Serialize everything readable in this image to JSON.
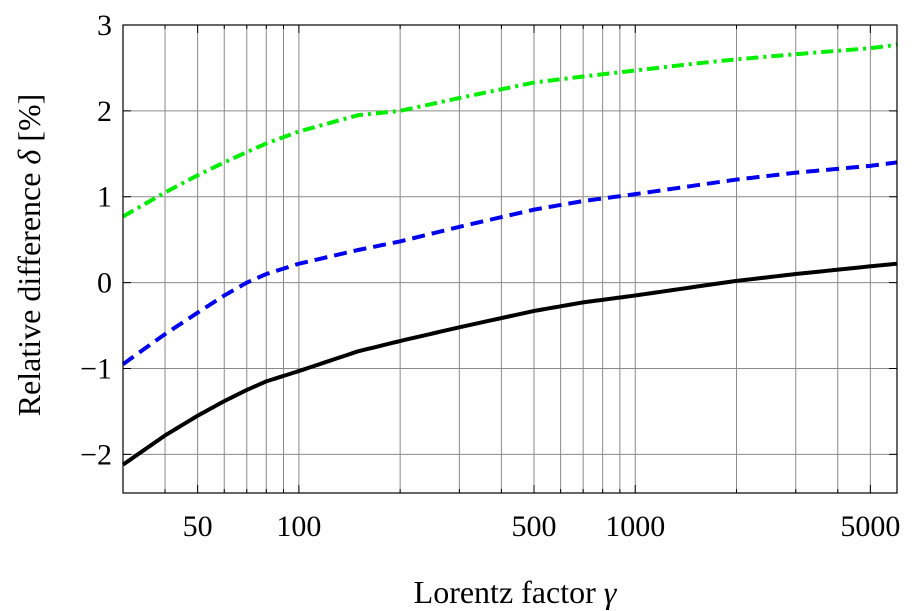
{
  "chart_data": {
    "type": "line",
    "xlabel_text": "Lorentz factor ",
    "xlabel_symbol": "γ",
    "ylabel_text": "Relative difference ",
    "ylabel_symbol": "δ",
    "ylabel_unit": " [%]",
    "x_scale": "log",
    "xlim": [
      30,
      6000
    ],
    "ylim": [
      -2.45,
      3
    ],
    "grid": true,
    "x_tick_labels": [
      {
        "value": 50,
        "label": "50"
      },
      {
        "value": 100,
        "label": "100"
      },
      {
        "value": 500,
        "label": "500"
      },
      {
        "value": 1000,
        "label": "1000"
      },
      {
        "value": 5000,
        "label": "5000"
      }
    ],
    "x_minor_grid": [
      30,
      40,
      50,
      60,
      70,
      80,
      90,
      100,
      200,
      300,
      400,
      500,
      600,
      700,
      800,
      900,
      1000,
      2000,
      3000,
      4000,
      5000
    ],
    "y_ticks": [
      {
        "value": 3,
        "label": "3"
      },
      {
        "value": 2,
        "label": "2"
      },
      {
        "value": 1,
        "label": "1"
      },
      {
        "value": 0,
        "label": "0"
      },
      {
        "value": -1,
        "label": "−1"
      },
      {
        "value": -2,
        "label": "−2"
      }
    ],
    "series": [
      {
        "color": "#00ee00",
        "style": "dashdot",
        "x": [
          30,
          40,
          50,
          60,
          70,
          80,
          100,
          150,
          200,
          300,
          500,
          700,
          1000,
          1500,
          2000,
          3000,
          5000,
          6000
        ],
        "y": [
          0.77,
          1.05,
          1.25,
          1.4,
          1.52,
          1.62,
          1.76,
          1.95,
          2.0,
          2.15,
          2.33,
          2.4,
          2.47,
          2.55,
          2.6,
          2.66,
          2.73,
          2.77
        ]
      },
      {
        "color": "#0000ee",
        "style": "dashed",
        "x": [
          30,
          40,
          50,
          60,
          70,
          80,
          100,
          150,
          200,
          300,
          500,
          700,
          1000,
          1500,
          2000,
          3000,
          5000,
          6000
        ],
        "y": [
          -0.95,
          -0.6,
          -0.35,
          -0.15,
          0.0,
          0.1,
          0.22,
          0.38,
          0.48,
          0.65,
          0.85,
          0.95,
          1.03,
          1.13,
          1.2,
          1.28,
          1.36,
          1.4
        ]
      },
      {
        "color": "#000000",
        "style": "solid",
        "x": [
          30,
          40,
          50,
          60,
          70,
          80,
          100,
          150,
          200,
          300,
          500,
          700,
          1000,
          1500,
          2000,
          3000,
          5000,
          6000
        ],
        "y": [
          -2.12,
          -1.78,
          -1.55,
          -1.38,
          -1.25,
          -1.15,
          -1.03,
          -0.8,
          -0.68,
          -0.52,
          -0.33,
          -0.23,
          -0.15,
          -0.05,
          0.02,
          0.1,
          0.19,
          0.22
        ]
      }
    ]
  }
}
